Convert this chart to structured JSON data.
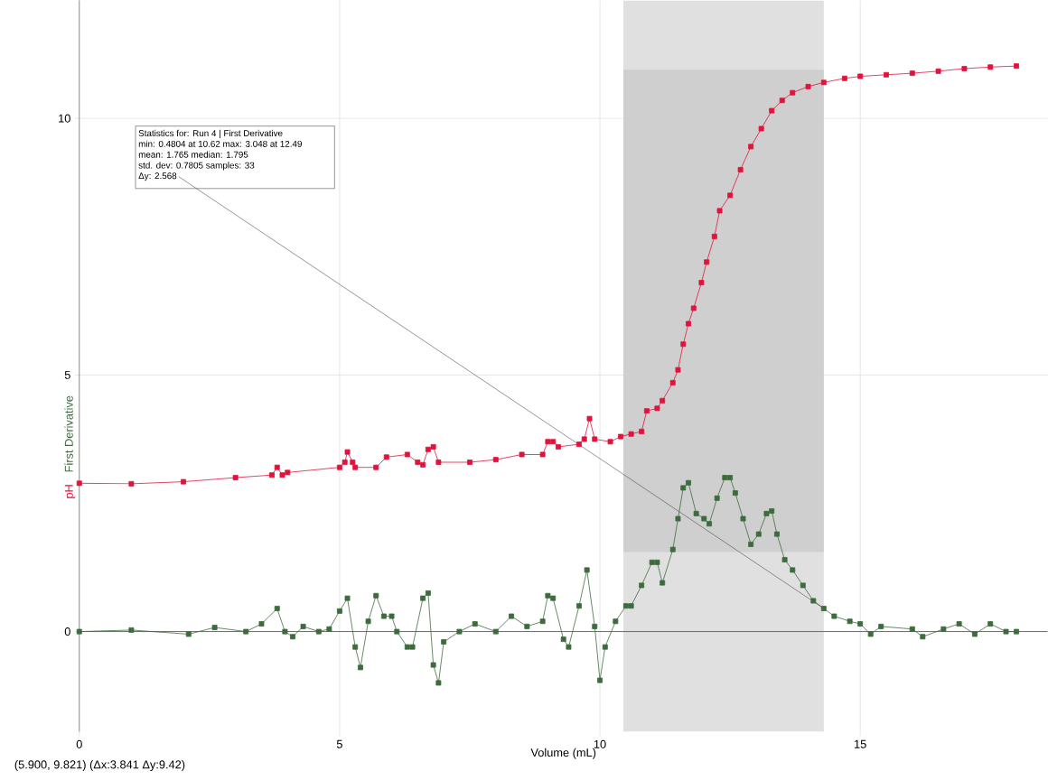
{
  "chart_data": {
    "type": "line",
    "xlabel": "Volume (mL)",
    "xlim": [
      0,
      18.6
    ],
    "ylim": [
      -1.95,
      12.3
    ],
    "xticks": [
      0,
      5,
      10,
      15
    ],
    "yticks": [
      0,
      5,
      10
    ],
    "grid": true,
    "marker": "square",
    "bands": [
      {
        "axis": "x",
        "from": 10.45,
        "to": 14.3,
        "color": "#e0e0e0"
      },
      {
        "axis": "y",
        "from": 1.55,
        "to": 10.95,
        "color": "#cfcfcf"
      }
    ],
    "ref_lines": [
      {
        "axis": "y",
        "value": 0,
        "color": "#555555"
      }
    ],
    "annotations": [
      "Statistics for: Run 4 | First Derivative",
      "min: 0.4804 at 10.62 max: 3.048 at 12.49",
      "mean: 1.765 median: 1.795",
      "std. dev: 0.7805 samples: 33",
      {
        "text": "Δy: 2.568",
        "x": 14.3,
        "y": 0.45
      },
      "(5.900, 9.821) (Δx:3.841 Δy:9.42)"
    ],
    "series": [
      {
        "name": "pH",
        "color": "#e0133c",
        "x": [
          0,
          1,
          2,
          3,
          3.7,
          3.8,
          3.9,
          4,
          5,
          5.1,
          5.15,
          5.25,
          5.3,
          5.7,
          5.9,
          6.3,
          6.5,
          6.6,
          6.7,
          6.8,
          6.9,
          7.5,
          8,
          8.5,
          8.9,
          9,
          9.1,
          9.2,
          9.6,
          9.7,
          9.8,
          9.9,
          10.2,
          10.4,
          10.6,
          10.8,
          10.9,
          11.1,
          11.2,
          11.4,
          11.5,
          11.6,
          11.7,
          11.8,
          11.95,
          12.05,
          12.2,
          12.3,
          12.5,
          12.7,
          12.9,
          13.1,
          13.3,
          13.5,
          13.7,
          14,
          14.3,
          14.7,
          15,
          15.5,
          16,
          16.5,
          17,
          17.5,
          18
        ],
        "values": [
          2.89,
          2.88,
          2.92,
          3.0,
          3.05,
          3.2,
          3.05,
          3.1,
          3.2,
          3.3,
          3.5,
          3.3,
          3.2,
          3.2,
          3.4,
          3.45,
          3.3,
          3.25,
          3.55,
          3.6,
          3.3,
          3.3,
          3.35,
          3.45,
          3.45,
          3.7,
          3.7,
          3.6,
          3.65,
          3.75,
          4.15,
          3.75,
          3.7,
          3.8,
          3.85,
          3.9,
          4.3,
          4.35,
          4.5,
          4.85,
          5.1,
          5.6,
          6.0,
          6.3,
          6.8,
          7.2,
          7.7,
          8.2,
          8.5,
          9.0,
          9.45,
          9.8,
          10.15,
          10.35,
          10.5,
          10.62,
          10.7,
          10.78,
          10.82,
          10.85,
          10.88,
          10.92,
          10.97,
          11.0,
          11.02
        ]
      },
      {
        "name": "First Derivative",
        "color": "#3d6b3d",
        "x": [
          0,
          1,
          2.1,
          2.6,
          3.2,
          3.5,
          3.8,
          3.95,
          4.1,
          4.3,
          4.6,
          4.8,
          5,
          5.15,
          5.3,
          5.4,
          5.55,
          5.7,
          5.85,
          6,
          6.1,
          6.3,
          6.4,
          6.6,
          6.7,
          6.8,
          6.9,
          7,
          7.3,
          7.6,
          8,
          8.3,
          8.6,
          8.9,
          9,
          9.1,
          9.3,
          9.4,
          9.6,
          9.75,
          9.9,
          10,
          10.1,
          10.3,
          10.5,
          10.6,
          10.8,
          11,
          11.1,
          11.2,
          11.4,
          11.5,
          11.6,
          11.7,
          11.85,
          12,
          12.1,
          12.25,
          12.4,
          12.5,
          12.6,
          12.75,
          12.9,
          13.05,
          13.2,
          13.3,
          13.4,
          13.55,
          13.7,
          13.9,
          14.1,
          14.3,
          14.5,
          14.8,
          15,
          15.2,
          15.4,
          16,
          16.2,
          16.6,
          16.9,
          17.2,
          17.5,
          17.8,
          18
        ],
        "values": [
          0.0,
          0.03,
          -0.05,
          0.08,
          0.0,
          0.15,
          0.45,
          0.0,
          -0.1,
          0.1,
          0.0,
          0.05,
          0.4,
          0.65,
          -0.3,
          -0.7,
          0.2,
          0.7,
          0.3,
          0.3,
          0.0,
          -0.3,
          -0.3,
          0.65,
          0.75,
          -0.65,
          -1.0,
          -0.2,
          0.0,
          0.15,
          0.0,
          0.3,
          0.1,
          0.2,
          0.7,
          0.65,
          -0.15,
          -0.3,
          0.5,
          1.2,
          0.1,
          -0.95,
          -0.3,
          0.2,
          0.5,
          0.5,
          0.9,
          1.35,
          1.35,
          0.95,
          1.6,
          2.2,
          2.8,
          2.9,
          2.3,
          2.2,
          2.1,
          2.6,
          3.0,
          3.0,
          2.7,
          2.2,
          1.7,
          1.9,
          2.3,
          2.35,
          1.9,
          1.4,
          1.2,
          0.9,
          0.6,
          0.45,
          0.3,
          0.2,
          0.15,
          -0.05,
          0.1,
          0.05,
          -0.1,
          0.05,
          0.15,
          -0.05,
          0.15,
          0.0,
          0.0
        ]
      }
    ]
  }
}
